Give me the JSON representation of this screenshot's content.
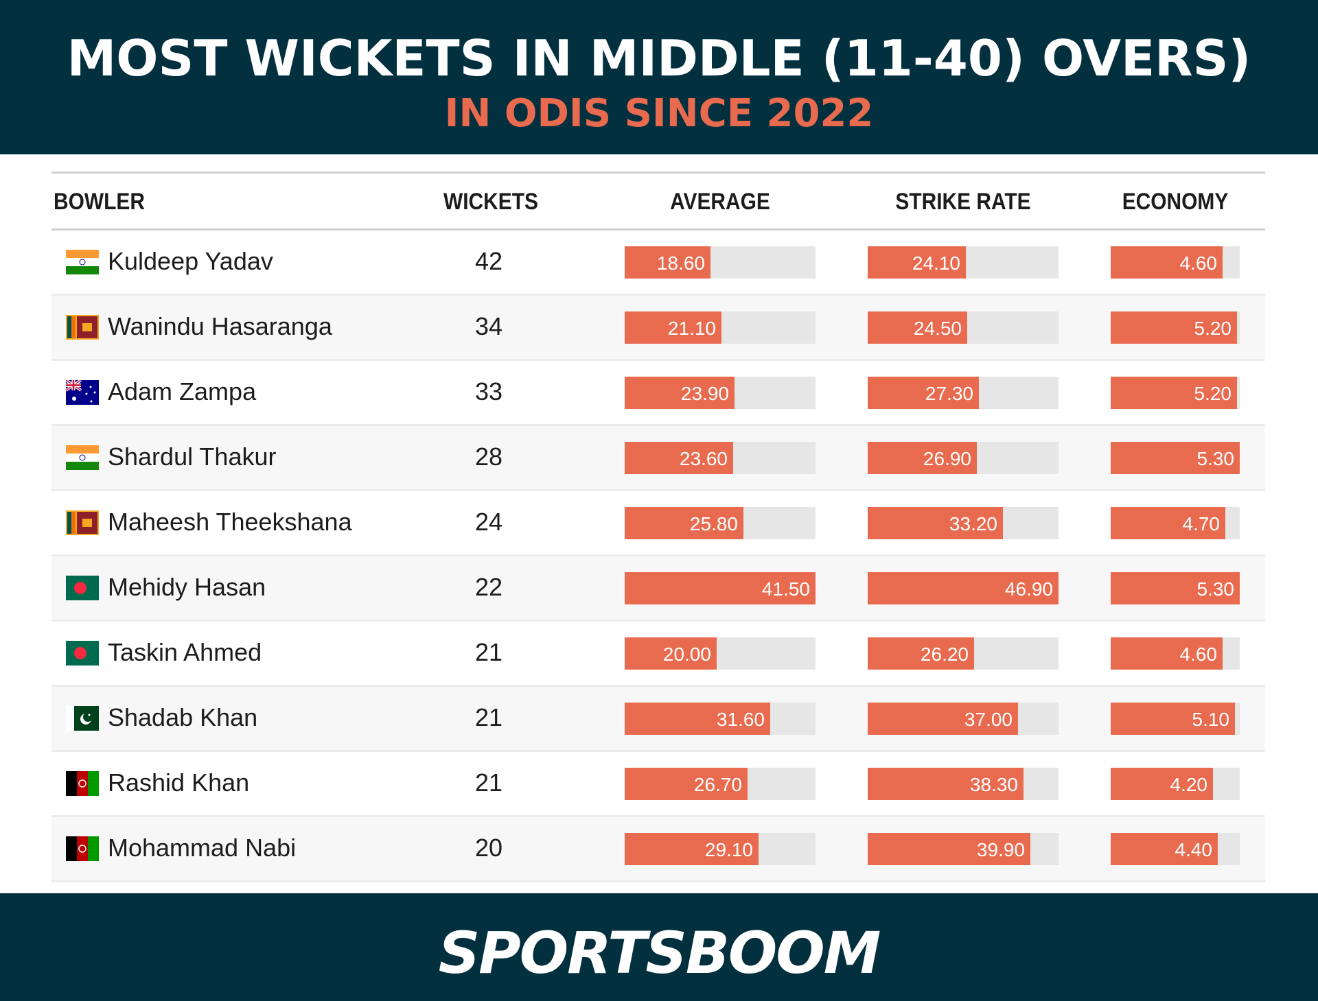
{
  "header": {
    "title": "MOST WICKETS IN MIDDLE (11-40) OVERS)",
    "subtitle": "IN ODIS SINCE 2022",
    "bg_color": "#03303f",
    "accent_color": "#e96b4f"
  },
  "table": {
    "columns": [
      "BOWLER",
      "WICKETS",
      "AVERAGE",
      "STRIKE RATE",
      "ECONOMY"
    ],
    "rows": [
      {
        "flag": "india-flag-icon",
        "bowler": "Kuldeep Yadav",
        "wickets": "42",
        "average": "18.60",
        "strike_rate": "24.10",
        "economy": "4.60"
      },
      {
        "flag": "sri-lanka-flag-icon",
        "bowler": "Wanindu Hasaranga",
        "wickets": "34",
        "average": "21.10",
        "strike_rate": "24.50",
        "economy": "5.20"
      },
      {
        "flag": "australia-flag-icon",
        "bowler": "Adam Zampa",
        "wickets": "33",
        "average": "23.90",
        "strike_rate": "27.30",
        "economy": "5.20"
      },
      {
        "flag": "india-flag-icon",
        "bowler": "Shardul Thakur",
        "wickets": "28",
        "average": "23.60",
        "strike_rate": "26.90",
        "economy": "5.30"
      },
      {
        "flag": "sri-lanka-flag-icon",
        "bowler": "Maheesh Theekshana",
        "wickets": "24",
        "average": "25.80",
        "strike_rate": "33.20",
        "economy": "4.70"
      },
      {
        "flag": "bangladesh-flag-icon",
        "bowler": "Mehidy Hasan",
        "wickets": "22",
        "average": "41.50",
        "strike_rate": "46.90",
        "economy": "5.30"
      },
      {
        "flag": "bangladesh-flag-icon",
        "bowler": "Taskin Ahmed",
        "wickets": "21",
        "average": "20.00",
        "strike_rate": "26.20",
        "economy": "4.60"
      },
      {
        "flag": "pakistan-flag-icon",
        "bowler": "Shadab Khan",
        "wickets": "21",
        "average": "31.60",
        "strike_rate": "37.00",
        "economy": "5.10"
      },
      {
        "flag": "afghanistan-flag-icon",
        "bowler": "Rashid Khan",
        "wickets": "21",
        "average": "26.70",
        "strike_rate": "38.30",
        "economy": "4.20"
      },
      {
        "flag": "afghanistan-flag-icon",
        "bowler": "Mohammad Nabi",
        "wickets": "20",
        "average": "29.10",
        "strike_rate": "39.90",
        "economy": "4.40"
      }
    ]
  },
  "footer": {
    "logo_text": "SPORTSBOOM"
  },
  "chart_data": {
    "type": "table",
    "title": "MOST WICKETS IN MIDDLE (11-40) OVERS)",
    "subtitle": "IN ODIS SINCE 2022",
    "categories": [
      "Kuldeep Yadav",
      "Wanindu Hasaranga",
      "Adam Zampa",
      "Shardul Thakur",
      "Maheesh Theekshana",
      "Mehidy Hasan",
      "Taskin Ahmed",
      "Shadab Khan",
      "Rashid Khan",
      "Mohammad Nabi"
    ],
    "series": [
      {
        "name": "WICKETS",
        "values": [
          42,
          34,
          33,
          28,
          24,
          22,
          21,
          21,
          21,
          20
        ]
      },
      {
        "name": "AVERAGE",
        "values": [
          18.6,
          21.1,
          23.9,
          23.6,
          25.8,
          41.5,
          20.0,
          31.6,
          26.7,
          29.1
        ],
        "bar_max": 41.5
      },
      {
        "name": "STRIKE RATE",
        "values": [
          24.1,
          24.5,
          27.3,
          26.9,
          33.2,
          46.9,
          26.2,
          37.0,
          38.3,
          39.9
        ],
        "bar_max": 46.9
      },
      {
        "name": "ECONOMY",
        "values": [
          4.6,
          5.2,
          5.2,
          5.3,
          4.7,
          5.3,
          4.6,
          5.1,
          4.2,
          4.4
        ],
        "bar_max": 5.3
      }
    ],
    "bar_color": "#e96b4f",
    "bar_track_color": "#e6e6e6"
  }
}
